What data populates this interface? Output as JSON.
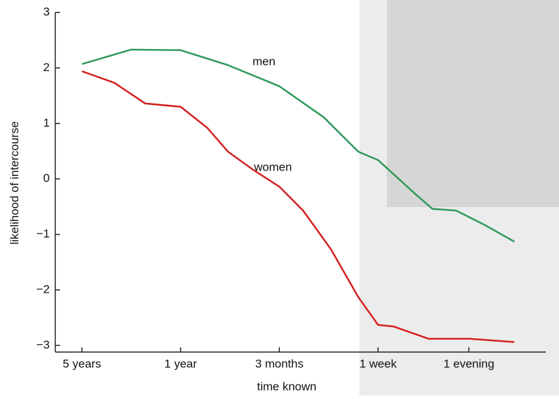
{
  "chart_data": {
    "type": "line",
    "y_label": "likelihood of intercourse",
    "x_label": "time known",
    "annotations": [
      "men",
      "women"
    ],
    "xlim": [
      -0.27,
      4.7
    ],
    "xticks": [
      {
        "value": 0,
        "label": "5 years"
      },
      {
        "value": 1,
        "label": "1 year"
      },
      {
        "value": 2,
        "label": "3 months"
      },
      {
        "value": 3,
        "label": "1 week"
      },
      {
        "value": 3.92,
        "label": "1 evening"
      }
    ],
    "ylim": [
      -3.12,
      3
    ],
    "yticks": [
      {
        "value": 3,
        "label": "3"
      },
      {
        "value": 2,
        "label": "2"
      },
      {
        "value": 1,
        "label": "1"
      },
      {
        "value": 0,
        "label": "0"
      },
      {
        "value": -1,
        "label": "−1"
      },
      {
        "value": -2,
        "label": "−2"
      },
      {
        "value": -3,
        "label": "−3"
      }
    ],
    "series": [
      {
        "name": "men",
        "color": "#2e9a5a",
        "x": [
          0,
          0.5,
          1,
          1.48,
          2,
          2.45,
          2.8,
          3,
          3.37,
          3.55,
          3.79,
          4.07,
          4.38
        ],
        "values": [
          2.07,
          2.33,
          2.32,
          2.05,
          1.67,
          1.11,
          0.49,
          0.34,
          -0.26,
          -0.54,
          -0.57,
          -0.82,
          -1.13
        ]
      },
      {
        "name": "women",
        "color": "#d42020",
        "x": [
          0,
          0.33,
          0.64,
          1,
          1.27,
          1.48,
          1.73,
          2,
          2.24,
          2.52,
          2.8,
          3,
          3.16,
          3.51,
          3.93,
          4.38
        ],
        "values": [
          1.94,
          1.73,
          1.36,
          1.3,
          0.92,
          0.49,
          0.17,
          -0.14,
          -0.57,
          -1.26,
          -2.13,
          -2.63,
          -2.66,
          -2.88,
          -2.88,
          -2.94
        ]
      }
    ]
  }
}
